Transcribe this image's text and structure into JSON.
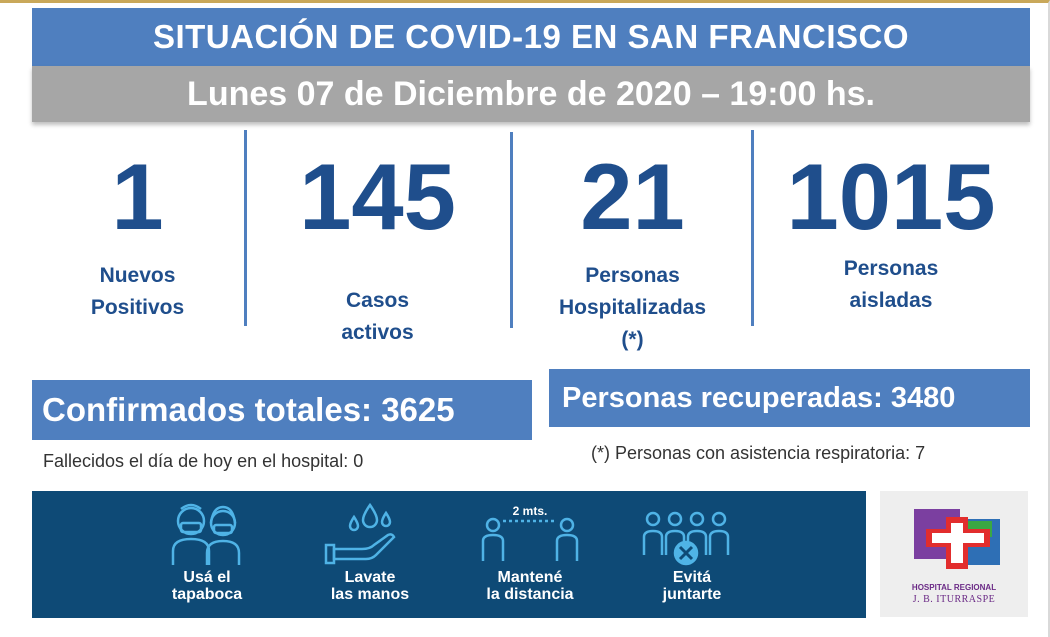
{
  "header": {
    "title": "SITUACIÓN DE COVID-19 EN SAN FRANCISCO",
    "date": "Lunes 07 de Diciembre de 2020 – 19:00 hs."
  },
  "stats": [
    {
      "value": "1",
      "label_line1": "Nuevos",
      "label_line2": "Positivos",
      "label_line3": ""
    },
    {
      "value": "145",
      "label_line1": "Casos",
      "label_line2": "activos",
      "label_line3": ""
    },
    {
      "value": "21",
      "label_line1": "Personas",
      "label_line2": "Hospitalizadas",
      "label_line3": "(*)"
    },
    {
      "value": "1015",
      "label_line1": "Personas",
      "label_line2": "aisladas",
      "label_line3": ""
    }
  ],
  "confirmed": {
    "text": "Confirmados totales: 3625",
    "note": "Fallecidos el día de hoy en el hospital: 0"
  },
  "recovered": {
    "text": "Personas recuperadas: 3480",
    "note": "(*) Personas con asistencia respiratoria: 7"
  },
  "tips": [
    {
      "line1": "Usá el",
      "line2": "tapaboca",
      "icon": "mask-people-icon"
    },
    {
      "line1": "Lavate",
      "line2": "las manos",
      "icon": "hand-washing-icon"
    },
    {
      "line1": "Mantené",
      "line2": "la distancia",
      "icon": "distance-icon",
      "distance_label": "2 mts."
    },
    {
      "line1": "Evitá",
      "line2": "juntarte",
      "icon": "crowd-forbidden-icon"
    }
  ],
  "logo": {
    "line1": "HOSPITAL REGIONAL",
    "line2": "J. B. ITURRASPE"
  },
  "colors": {
    "primary_blue": "#4f7fbf",
    "dark_blue_text": "#1f4e8c",
    "banner_navy": "#0e4a76",
    "date_gray": "#a6a6a6",
    "icon_cyan": "#4fb3e6"
  }
}
